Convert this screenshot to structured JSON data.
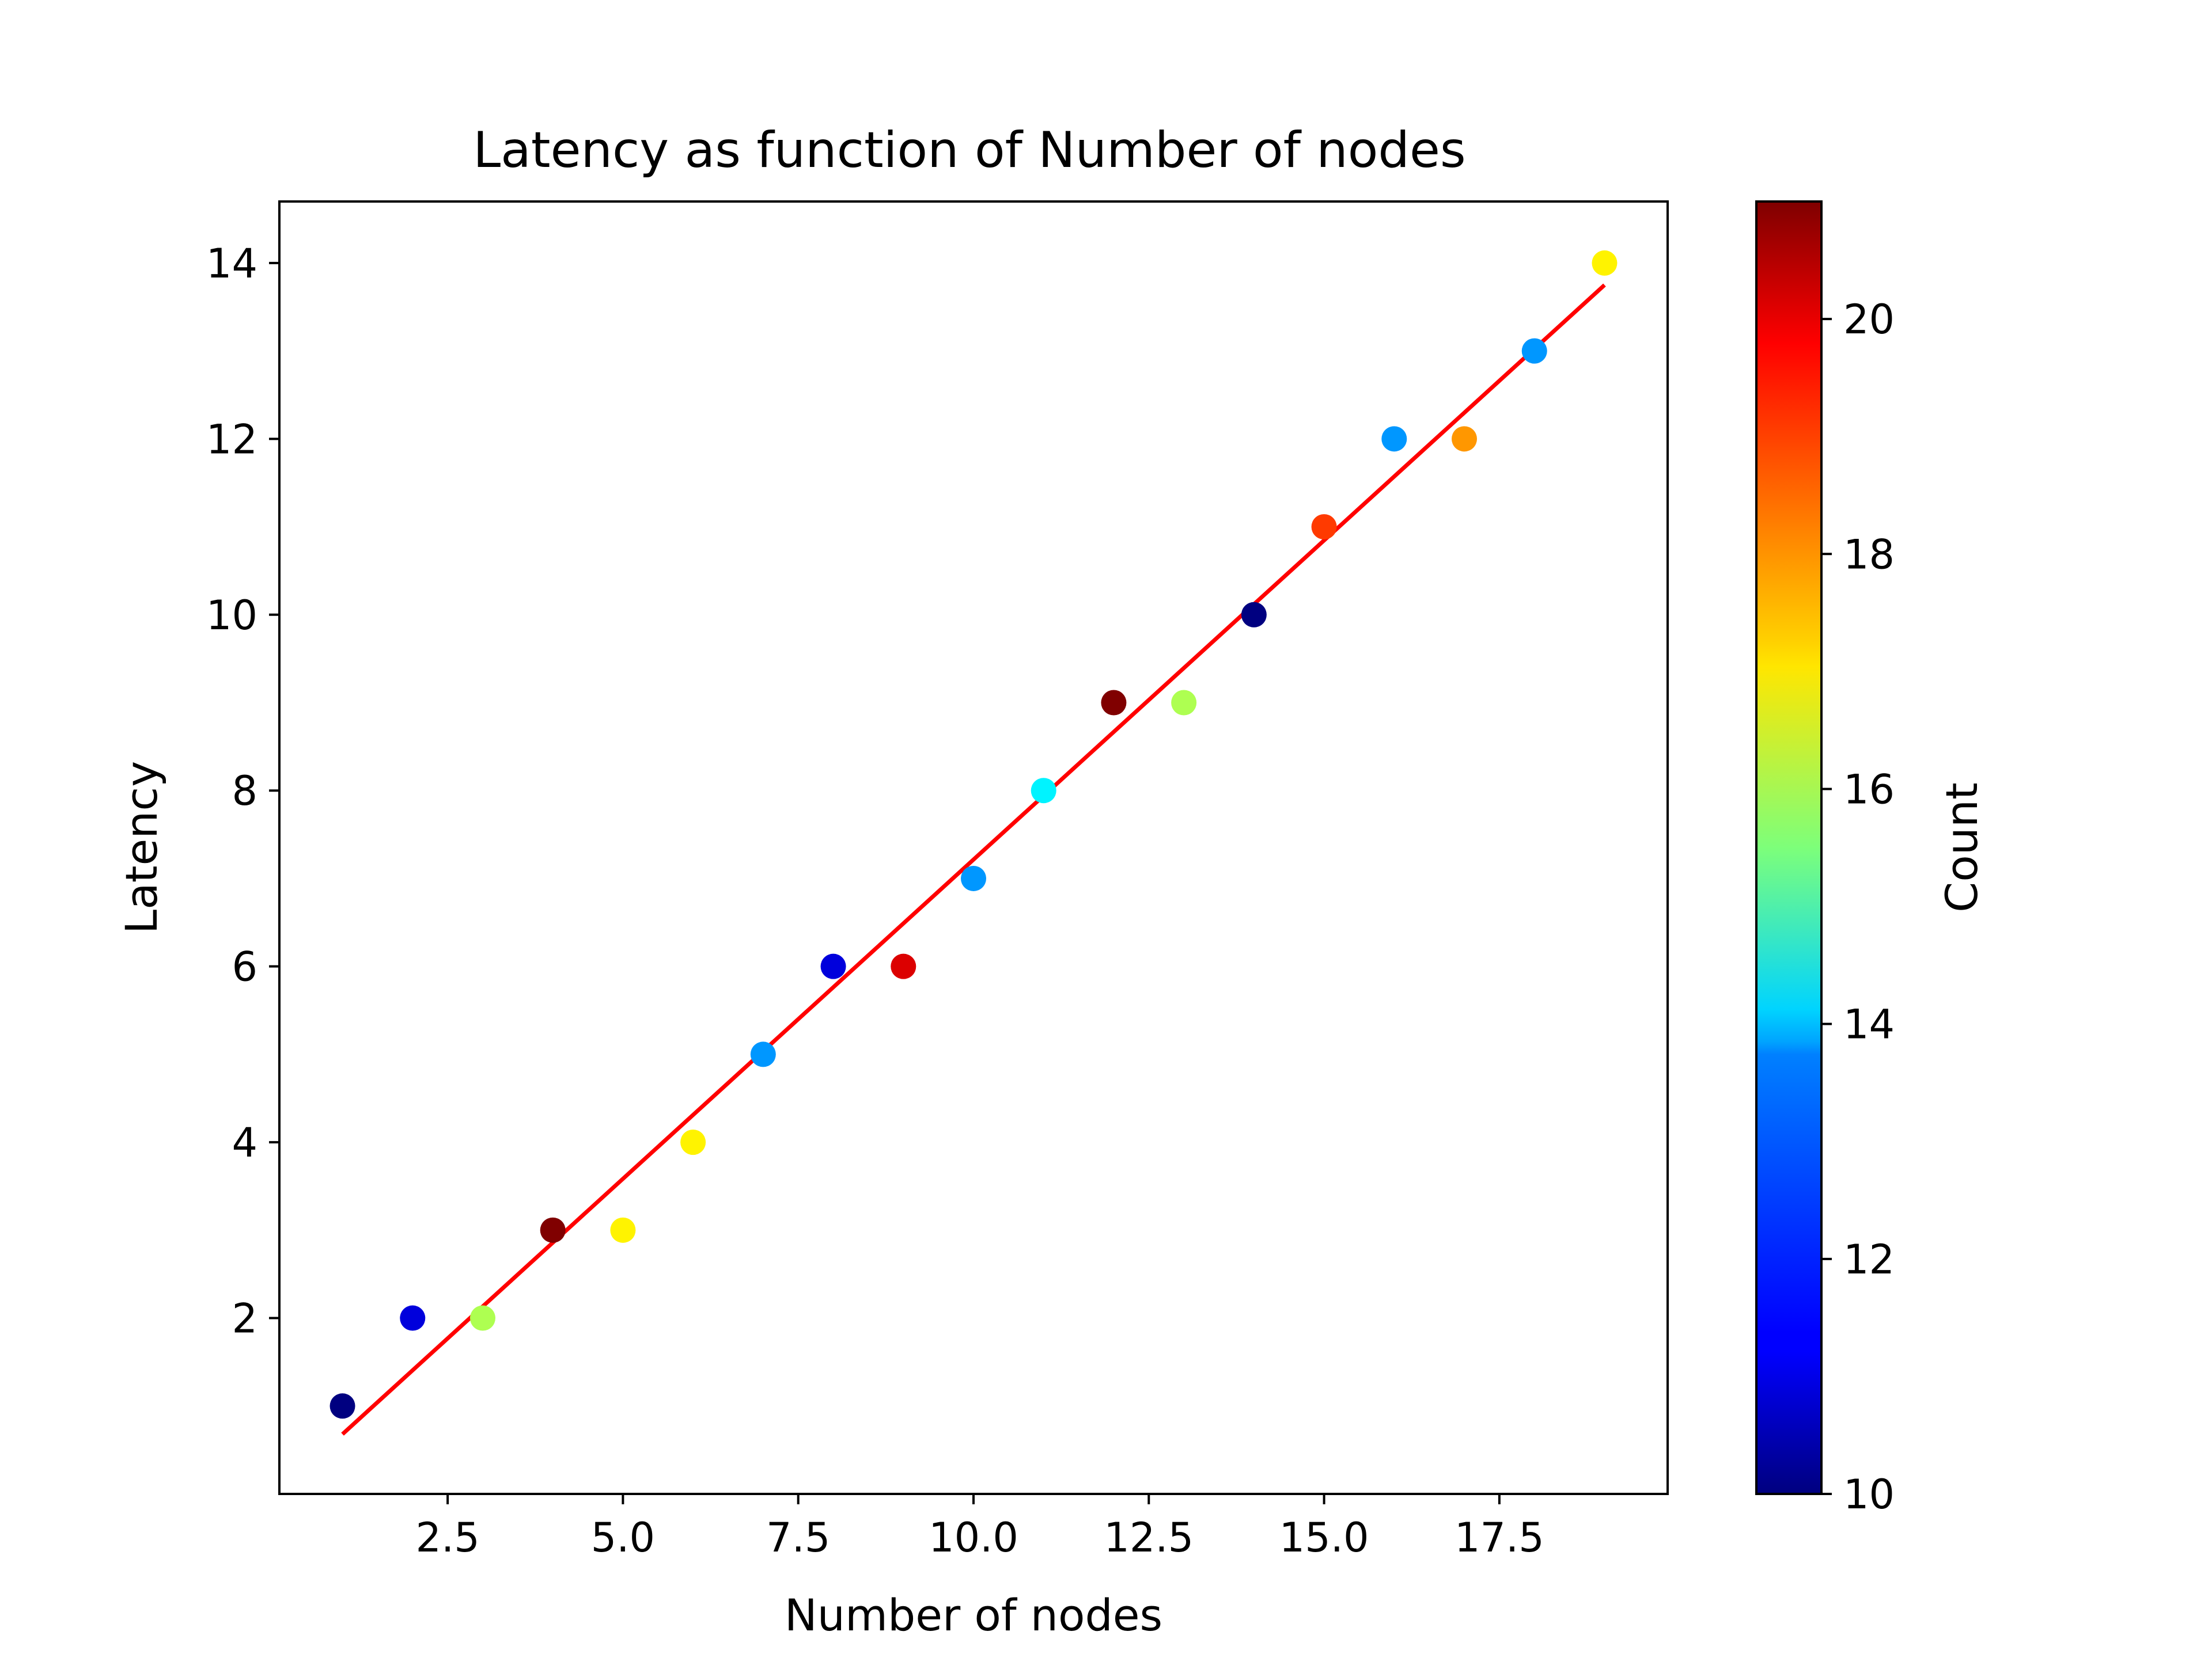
{
  "chart_data": {
    "type": "scatter",
    "title": "Latency as function of Number of nodes",
    "xlabel": "Number of nodes",
    "ylabel": "Latency",
    "xlim": [
      0.1,
      19.9
    ],
    "ylim": [
      0.0,
      14.7
    ],
    "xticks": [
      "2.5",
      "5.0",
      "7.5",
      "10.0",
      "12.5",
      "15.0",
      "17.5"
    ],
    "yticks": [
      "2",
      "4",
      "6",
      "8",
      "10",
      "12",
      "14"
    ],
    "grid": false,
    "colormap": "jet",
    "colorbar": {
      "label": "Count",
      "range": [
        10,
        21
      ],
      "ticks": [
        "10",
        "12",
        "14",
        "16",
        "18",
        "20"
      ]
    },
    "points": [
      {
        "x": 1,
        "y": 1,
        "count": 10
      },
      {
        "x": 2,
        "y": 2,
        "count": 11
      },
      {
        "x": 3,
        "y": 2,
        "count": 16
      },
      {
        "x": 4,
        "y": 3,
        "count": 21
      },
      {
        "x": 5,
        "y": 3,
        "count": 17
      },
      {
        "x": 6,
        "y": 4,
        "count": 17
      },
      {
        "x": 7,
        "y": 5,
        "count": 13
      },
      {
        "x": 8,
        "y": 6,
        "count": 11
      },
      {
        "x": 9,
        "y": 6,
        "count": 20
      },
      {
        "x": 10,
        "y": 7,
        "count": 13
      },
      {
        "x": 11,
        "y": 8,
        "count": 14
      },
      {
        "x": 12,
        "y": 9,
        "count": 21
      },
      {
        "x": 13,
        "y": 9,
        "count": 16
      },
      {
        "x": 14,
        "y": 10,
        "count": 10
      },
      {
        "x": 15,
        "y": 11,
        "count": 19
      },
      {
        "x": 16,
        "y": 12,
        "count": 13
      },
      {
        "x": 17,
        "y": 12,
        "count": 18
      },
      {
        "x": 18,
        "y": 13,
        "count": 13
      },
      {
        "x": 19,
        "y": 14,
        "count": 17
      }
    ],
    "fit_line": {
      "color": "#ff0000",
      "from": {
        "x": 1,
        "y": 0.68
      },
      "to": {
        "x": 19,
        "y": 13.75
      }
    }
  }
}
